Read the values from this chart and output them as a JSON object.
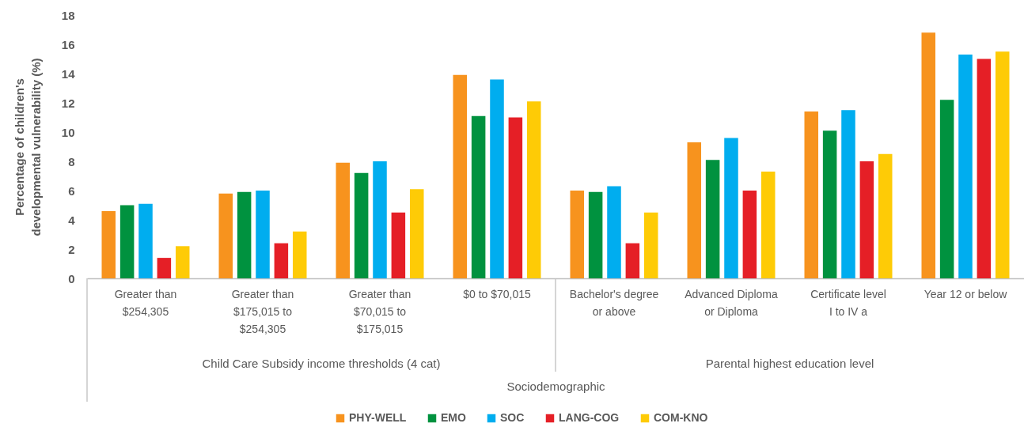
{
  "chart_data": {
    "type": "bar",
    "xlabel": "Sociodemographic",
    "ylabel": "Percentage of children's developmental vulnerability (%)",
    "categories": [
      "Greater than $254,305",
      "Greater than $175,015 to $254,305",
      "Greater than $70,015 to $175,015",
      "$0 to $70,015",
      "Bachelor's degree or above",
      "Advanced Diploma or Diploma",
      "Certificate level I to IV a",
      "Year 12 or below"
    ],
    "annotations": [
      "Child Care Subsidy income thresholds (4 cat)",
      "Parental highest education level"
    ],
    "series": [
      {
        "name": "PHY-WELL",
        "color": "#f7931e",
        "values": [
          4.6,
          5.8,
          7.9,
          13.9,
          6.0,
          9.3,
          11.4,
          16.8
        ]
      },
      {
        "name": "EMO",
        "color": "#00923f",
        "values": [
          5.0,
          5.9,
          7.2,
          11.1,
          5.9,
          8.1,
          10.1,
          12.2
        ]
      },
      {
        "name": "SOC",
        "color": "#00adef",
        "values": [
          5.1,
          6.0,
          8.0,
          13.6,
          6.3,
          9.6,
          11.5,
          15.3
        ]
      },
      {
        "name": "LANG-COG",
        "color": "#e51f26",
        "values": [
          1.4,
          2.4,
          4.5,
          11.0,
          2.4,
          6.0,
          8.0,
          15.0
        ]
      },
      {
        "name": "COM-KNO",
        "color": "#fecb06",
        "values": [
          2.2,
          3.2,
          6.1,
          12.1,
          4.5,
          7.3,
          8.5,
          15.5
        ]
      }
    ],
    "ylim": [
      0,
      18
    ],
    "yticks": [
      0,
      2,
      4,
      6,
      8,
      10,
      12,
      14,
      16,
      18
    ],
    "legend": "bottom"
  }
}
